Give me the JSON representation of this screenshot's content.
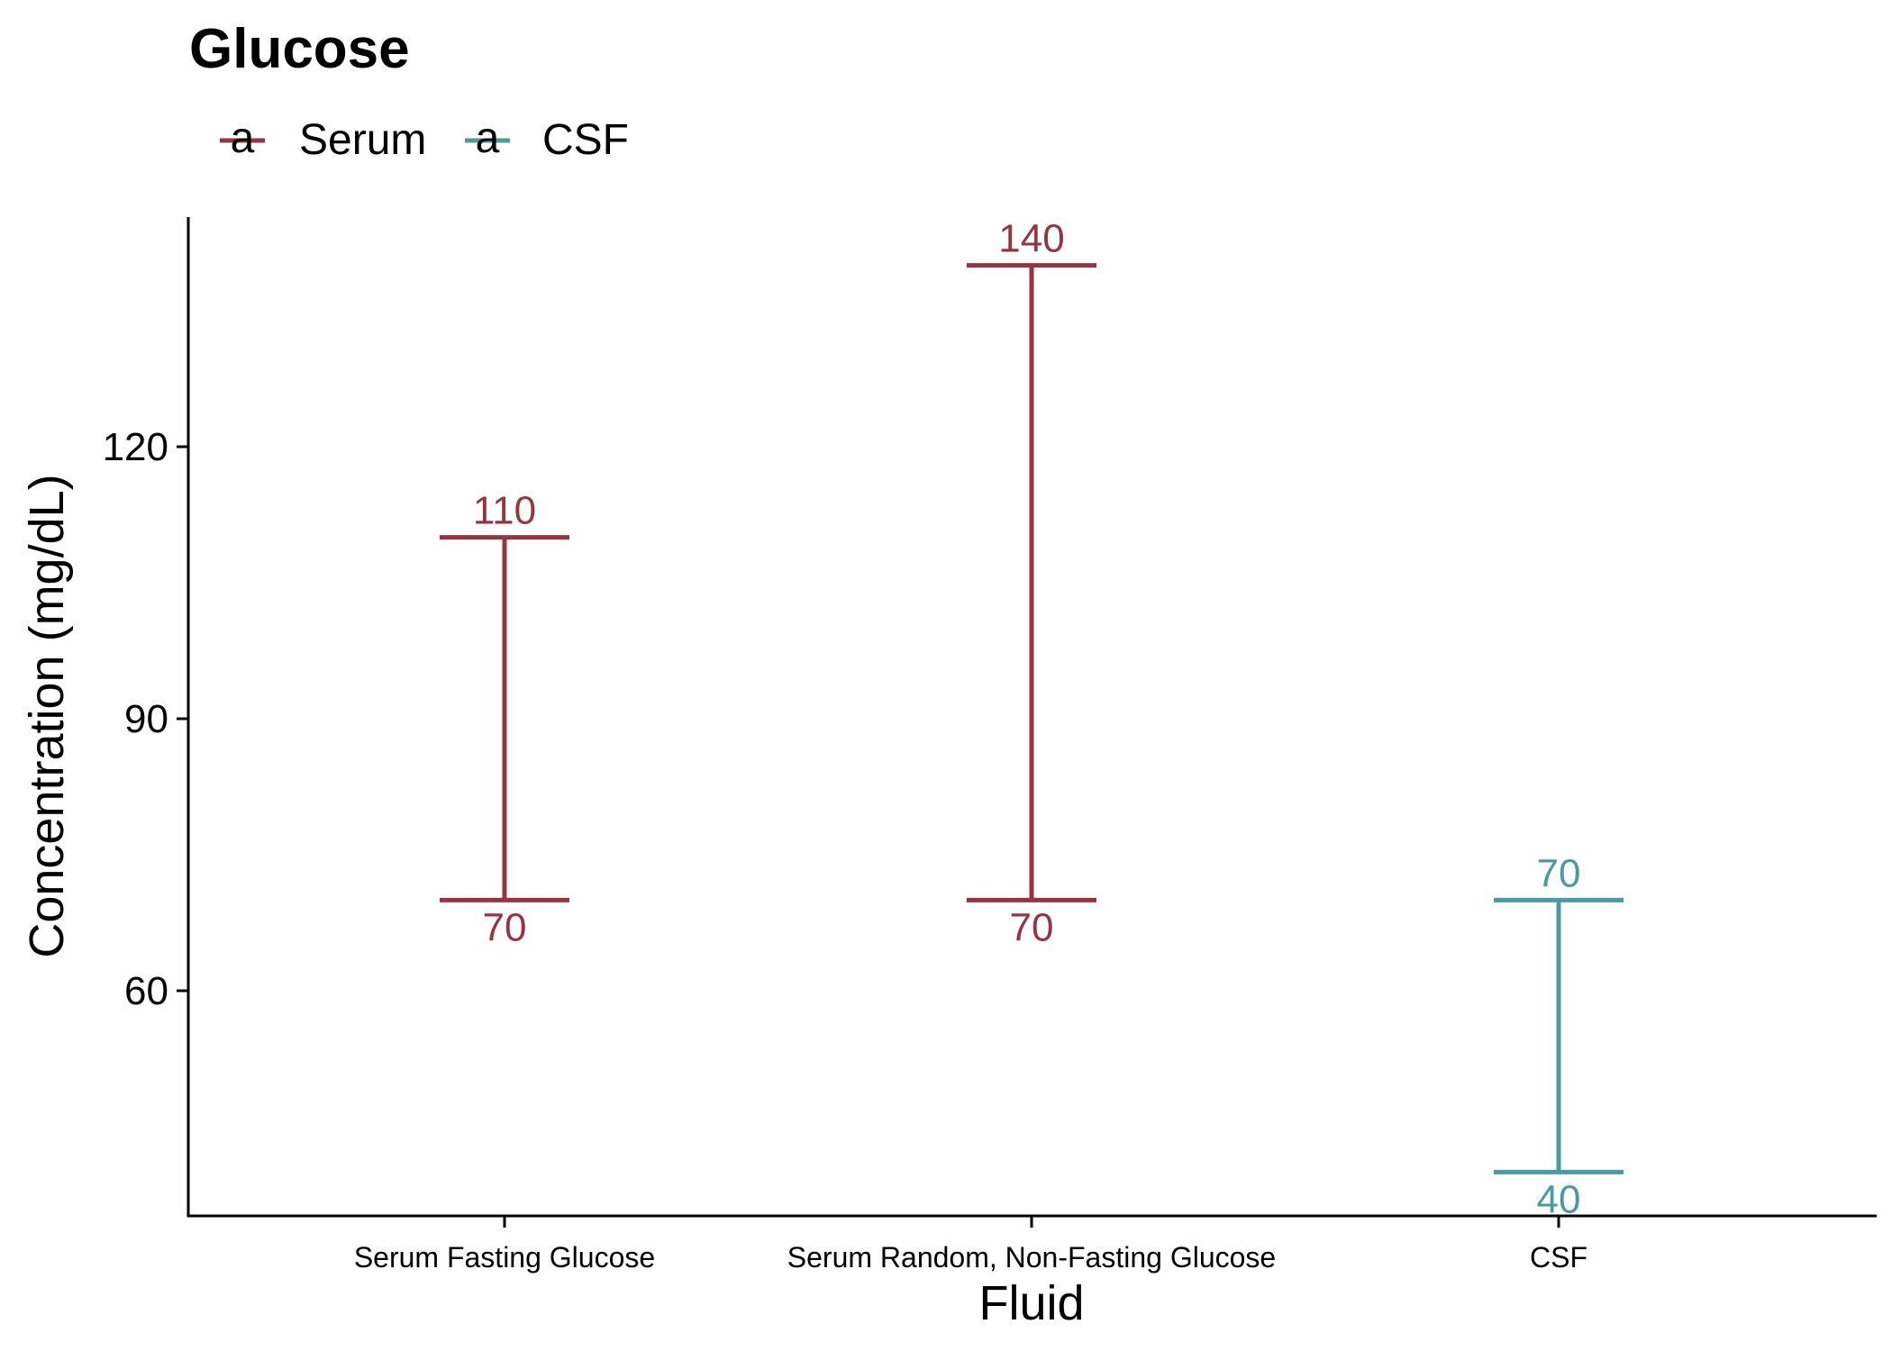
{
  "chart_data": {
    "type": "errorbar",
    "title": "Glucose",
    "xlabel": "Fluid",
    "ylabel": "Concentration (mg/dL)",
    "categories": [
      "Serum Fasting Glucose",
      "Serum Random, Non-Fasting Glucose",
      "CSF"
    ],
    "yticks": [
      60,
      90,
      120
    ],
    "ylim": [
      35,
      145
    ],
    "grid": false,
    "legend_position": "top-left",
    "legend": [
      {
        "name": "Serum",
        "color": "#963441",
        "glyph": "a"
      },
      {
        "name": "CSF",
        "color": "#4A9BA0",
        "glyph": "a"
      }
    ],
    "series": [
      {
        "name": "Serum",
        "color": "#963441",
        "points": [
          {
            "category": "Serum Fasting Glucose",
            "low": 70,
            "high": 110
          },
          {
            "category": "Serum Random, Non-Fasting Glucose",
            "low": 70,
            "high": 140
          }
        ]
      },
      {
        "name": "CSF",
        "color": "#4A9BA0",
        "points": [
          {
            "category": "CSF",
            "low": 40,
            "high": 70
          }
        ]
      }
    ]
  }
}
